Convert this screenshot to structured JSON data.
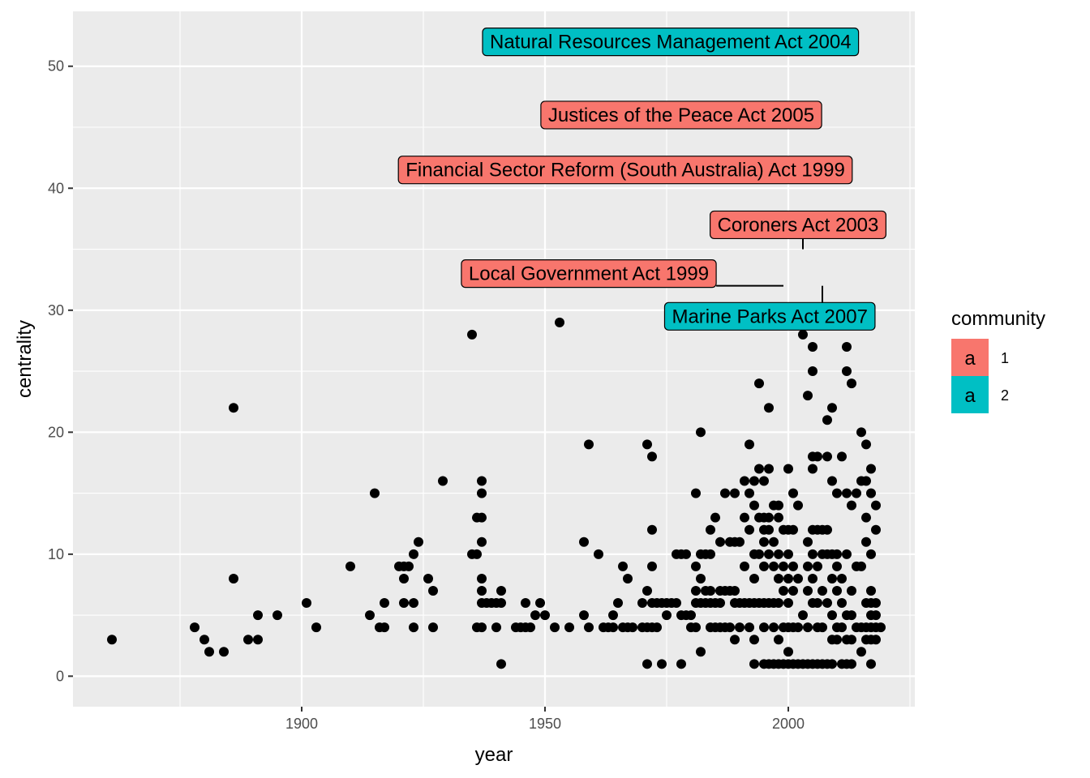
{
  "chart_data": {
    "type": "scatter",
    "title": "",
    "xlabel": "year",
    "ylabel": "centrality",
    "xlim": [
      1853,
      2026
    ],
    "ylim": [
      -2.5,
      54.5
    ],
    "x_ticks": [
      1900,
      1950,
      2000
    ],
    "y_ticks": [
      0,
      10,
      20,
      30,
      40,
      50
    ],
    "grid": true,
    "legend": {
      "title": "community",
      "placement": "right",
      "entries": [
        {
          "label": "1",
          "glyph": "a",
          "color": "#F8766D"
        },
        {
          "label": "2",
          "glyph": "a",
          "color": "#00BFC4"
        }
      ]
    },
    "annotations": [
      {
        "text": "Natural Resources Management Act 2004",
        "community": "2",
        "x": 2004,
        "y": 52
      },
      {
        "text": "Justices of the Peace Act 2005",
        "community": "1",
        "x": 2005,
        "y": 46
      },
      {
        "text": "Financial Sector Reform (South Australia) Act 1999",
        "community": "1",
        "x": 1999,
        "y": 40
      },
      {
        "text": "Coroners Act 2003",
        "community": "1",
        "x": 2003,
        "y": 35
      },
      {
        "text": "Local Government Act 1999",
        "community": "1",
        "x": 1999,
        "y": 32
      },
      {
        "text": "Marine Parks Act 2007",
        "community": "2",
        "x": 2007,
        "y": 32
      }
    ],
    "points": [
      [
        1861,
        3
      ],
      [
        1878,
        4
      ],
      [
        1880,
        3
      ],
      [
        1881,
        2
      ],
      [
        1884,
        2
      ],
      [
        1886,
        22
      ],
      [
        1886,
        8
      ],
      [
        1889,
        3
      ],
      [
        1891,
        3
      ],
      [
        1891,
        5
      ],
      [
        1895,
        5
      ],
      [
        1901,
        6
      ],
      [
        1903,
        4
      ],
      [
        1910,
        9
      ],
      [
        1914,
        5
      ],
      [
        1915,
        15
      ],
      [
        1916,
        4
      ],
      [
        1917,
        4
      ],
      [
        1917,
        6
      ],
      [
        1920,
        9
      ],
      [
        1921,
        6
      ],
      [
        1921,
        8
      ],
      [
        1921,
        9
      ],
      [
        1922,
        9
      ],
      [
        1923,
        4
      ],
      [
        1923,
        6
      ],
      [
        1923,
        10
      ],
      [
        1924,
        11
      ],
      [
        1926,
        8
      ],
      [
        1927,
        4
      ],
      [
        1927,
        7
      ],
      [
        1929,
        16
      ],
      [
        1935,
        10
      ],
      [
        1935,
        28
      ],
      [
        1936,
        4
      ],
      [
        1936,
        10
      ],
      [
        1936,
        13
      ],
      [
        1937,
        4
      ],
      [
        1937,
        6
      ],
      [
        1937,
        7
      ],
      [
        1937,
        8
      ],
      [
        1937,
        11
      ],
      [
        1937,
        13
      ],
      [
        1937,
        15
      ],
      [
        1937,
        16
      ],
      [
        1938,
        6
      ],
      [
        1939,
        6
      ],
      [
        1940,
        4
      ],
      [
        1940,
        6
      ],
      [
        1941,
        1
      ],
      [
        1941,
        6
      ],
      [
        1941,
        7
      ],
      [
        1944,
        4
      ],
      [
        1945,
        4
      ],
      [
        1946,
        6
      ],
      [
        1946,
        4
      ],
      [
        1947,
        4
      ],
      [
        1948,
        5
      ],
      [
        1949,
        6
      ],
      [
        1950,
        5
      ],
      [
        1952,
        4
      ],
      [
        1953,
        29
      ],
      [
        1955,
        4
      ],
      [
        1958,
        5
      ],
      [
        1958,
        11
      ],
      [
        1959,
        4
      ],
      [
        1959,
        19
      ],
      [
        1961,
        10
      ],
      [
        1962,
        4
      ],
      [
        1963,
        4
      ],
      [
        1964,
        4
      ],
      [
        1964,
        5
      ],
      [
        1965,
        6
      ],
      [
        1966,
        4
      ],
      [
        1966,
        9
      ],
      [
        1967,
        4
      ],
      [
        1967,
        8
      ],
      [
        1968,
        4
      ],
      [
        1970,
        4
      ],
      [
        1970,
        6
      ],
      [
        1971,
        1
      ],
      [
        1971,
        4
      ],
      [
        1971,
        7
      ],
      [
        1971,
        19
      ],
      [
        1972,
        4
      ],
      [
        1972,
        6
      ],
      [
        1972,
        9
      ],
      [
        1972,
        12
      ],
      [
        1972,
        18
      ],
      [
        1973,
        4
      ],
      [
        1973,
        6
      ],
      [
        1974,
        1
      ],
      [
        1974,
        6
      ],
      [
        1975,
        5
      ],
      [
        1975,
        6
      ],
      [
        1976,
        6
      ],
      [
        1977,
        6
      ],
      [
        1977,
        10
      ],
      [
        1978,
        1
      ],
      [
        1978,
        5
      ],
      [
        1978,
        10
      ],
      [
        1979,
        5
      ],
      [
        1979,
        10
      ],
      [
        1980,
        4
      ],
      [
        1980,
        5
      ],
      [
        1981,
        4
      ],
      [
        1981,
        6
      ],
      [
        1981,
        7
      ],
      [
        1981,
        9
      ],
      [
        1981,
        15
      ],
      [
        1982,
        2
      ],
      [
        1982,
        6
      ],
      [
        1982,
        8
      ],
      [
        1982,
        10
      ],
      [
        1982,
        20
      ],
      [
        1983,
        6
      ],
      [
        1983,
        7
      ],
      [
        1983,
        10
      ],
      [
        1984,
        4
      ],
      [
        1984,
        6
      ],
      [
        1984,
        7
      ],
      [
        1984,
        10
      ],
      [
        1984,
        12
      ],
      [
        1985,
        4
      ],
      [
        1985,
        6
      ],
      [
        1985,
        13
      ],
      [
        1986,
        4
      ],
      [
        1986,
        6
      ],
      [
        1986,
        7
      ],
      [
        1986,
        11
      ],
      [
        1987,
        4
      ],
      [
        1987,
        7
      ],
      [
        1987,
        15
      ],
      [
        1988,
        4
      ],
      [
        1988,
        7
      ],
      [
        1988,
        11
      ],
      [
        1989,
        3
      ],
      [
        1989,
        6
      ],
      [
        1989,
        7
      ],
      [
        1989,
        11
      ],
      [
        1989,
        15
      ],
      [
        1990,
        4
      ],
      [
        1990,
        6
      ],
      [
        1990,
        11
      ],
      [
        1991,
        6
      ],
      [
        1991,
        9
      ],
      [
        1991,
        13
      ],
      [
        1991,
        16
      ],
      [
        1992,
        4
      ],
      [
        1992,
        6
      ],
      [
        1992,
        12
      ],
      [
        1992,
        15
      ],
      [
        1992,
        19
      ],
      [
        1993,
        1
      ],
      [
        1993,
        3
      ],
      [
        1993,
        6
      ],
      [
        1993,
        8
      ],
      [
        1993,
        10
      ],
      [
        1993,
        14
      ],
      [
        1993,
        16
      ],
      [
        1994,
        6
      ],
      [
        1994,
        10
      ],
      [
        1994,
        13
      ],
      [
        1994,
        17
      ],
      [
        1994,
        24
      ],
      [
        1995,
        1
      ],
      [
        1995,
        4
      ],
      [
        1995,
        6
      ],
      [
        1995,
        9
      ],
      [
        1995,
        11
      ],
      [
        1995,
        12
      ],
      [
        1995,
        13
      ],
      [
        1995,
        16
      ],
      [
        1996,
        1
      ],
      [
        1996,
        6
      ],
      [
        1996,
        10
      ],
      [
        1996,
        12
      ],
      [
        1996,
        13
      ],
      [
        1996,
        17
      ],
      [
        1996,
        22
      ],
      [
        1997,
        1
      ],
      [
        1997,
        4
      ],
      [
        1997,
        6
      ],
      [
        1997,
        9
      ],
      [
        1997,
        11
      ],
      [
        1997,
        14
      ],
      [
        1998,
        1
      ],
      [
        1998,
        3
      ],
      [
        1998,
        6
      ],
      [
        1998,
        8
      ],
      [
        1998,
        10
      ],
      [
        1998,
        13
      ],
      [
        1998,
        14
      ],
      [
        1999,
        1
      ],
      [
        1999,
        4
      ],
      [
        1999,
        7
      ],
      [
        1999,
        9
      ],
      [
        1999,
        12
      ],
      [
        2000,
        1
      ],
      [
        2000,
        2
      ],
      [
        2000,
        4
      ],
      [
        2000,
        6
      ],
      [
        2000,
        8
      ],
      [
        2000,
        10
      ],
      [
        2000,
        12
      ],
      [
        2000,
        17
      ],
      [
        2001,
        1
      ],
      [
        2001,
        4
      ],
      [
        2001,
        7
      ],
      [
        2001,
        9
      ],
      [
        2001,
        12
      ],
      [
        2001,
        15
      ],
      [
        2002,
        1
      ],
      [
        2002,
        4
      ],
      [
        2002,
        8
      ],
      [
        2002,
        14
      ],
      [
        2003,
        1
      ],
      [
        2003,
        5
      ],
      [
        2003,
        28
      ],
      [
        2003,
        30
      ],
      [
        2004,
        1
      ],
      [
        2004,
        4
      ],
      [
        2004,
        7
      ],
      [
        2004,
        9
      ],
      [
        2004,
        11
      ],
      [
        2004,
        23
      ],
      [
        2005,
        1
      ],
      [
        2005,
        6
      ],
      [
        2005,
        8
      ],
      [
        2005,
        10
      ],
      [
        2005,
        12
      ],
      [
        2005,
        17
      ],
      [
        2005,
        18
      ],
      [
        2005,
        25
      ],
      [
        2005,
        27
      ],
      [
        2006,
        1
      ],
      [
        2006,
        4
      ],
      [
        2006,
        6
      ],
      [
        2006,
        9
      ],
      [
        2006,
        12
      ],
      [
        2006,
        18
      ],
      [
        2007,
        1
      ],
      [
        2007,
        4
      ],
      [
        2007,
        7
      ],
      [
        2007,
        10
      ],
      [
        2007,
        12
      ],
      [
        2008,
        1
      ],
      [
        2008,
        6
      ],
      [
        2008,
        10
      ],
      [
        2008,
        12
      ],
      [
        2008,
        18
      ],
      [
        2008,
        21
      ],
      [
        2009,
        1
      ],
      [
        2009,
        3
      ],
      [
        2009,
        5
      ],
      [
        2009,
        8
      ],
      [
        2009,
        10
      ],
      [
        2009,
        16
      ],
      [
        2009,
        22
      ],
      [
        2010,
        3
      ],
      [
        2010,
        4
      ],
      [
        2010,
        7
      ],
      [
        2010,
        9
      ],
      [
        2010,
        10
      ],
      [
        2010,
        15
      ],
      [
        2011,
        1
      ],
      [
        2011,
        4
      ],
      [
        2011,
        6
      ],
      [
        2011,
        8
      ],
      [
        2011,
        18
      ],
      [
        2012,
        1
      ],
      [
        2012,
        3
      ],
      [
        2012,
        5
      ],
      [
        2012,
        10
      ],
      [
        2012,
        15
      ],
      [
        2012,
        25
      ],
      [
        2012,
        27
      ],
      [
        2013,
        1
      ],
      [
        2013,
        3
      ],
      [
        2013,
        5
      ],
      [
        2013,
        7
      ],
      [
        2013,
        14
      ],
      [
        2013,
        24
      ],
      [
        2014,
        4
      ],
      [
        2014,
        9
      ],
      [
        2014,
        15
      ],
      [
        2015,
        2
      ],
      [
        2015,
        4
      ],
      [
        2015,
        9
      ],
      [
        2015,
        16
      ],
      [
        2015,
        20
      ],
      [
        2016,
        3
      ],
      [
        2016,
        4
      ],
      [
        2016,
        6
      ],
      [
        2016,
        11
      ],
      [
        2016,
        13
      ],
      [
        2016,
        16
      ],
      [
        2016,
        19
      ],
      [
        2017,
        1
      ],
      [
        2017,
        3
      ],
      [
        2017,
        4
      ],
      [
        2017,
        5
      ],
      [
        2017,
        6
      ],
      [
        2017,
        7
      ],
      [
        2017,
        10
      ],
      [
        2017,
        15
      ],
      [
        2017,
        17
      ],
      [
        2018,
        3
      ],
      [
        2018,
        4
      ],
      [
        2018,
        5
      ],
      [
        2018,
        6
      ],
      [
        2018,
        12
      ],
      [
        2018,
        14
      ],
      [
        2019,
        4
      ]
    ]
  }
}
